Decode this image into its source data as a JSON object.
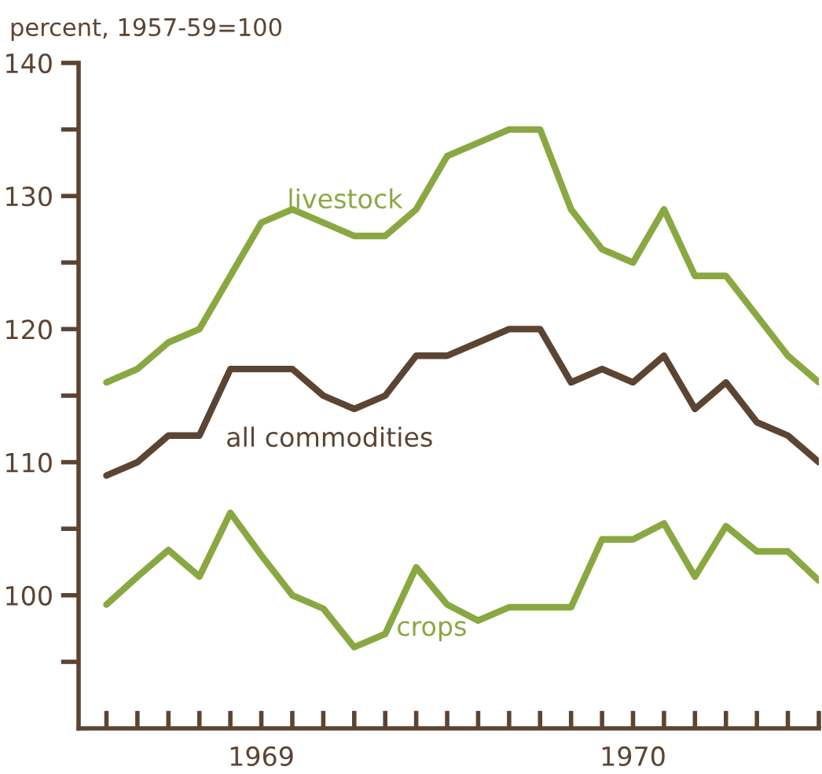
{
  "chart_data": {
    "type": "line",
    "ylabel": "percent, 1957-59=100",
    "categories": [
      null,
      null,
      null,
      null,
      null,
      "1969",
      null,
      null,
      null,
      null,
      null,
      null,
      null,
      null,
      null,
      null,
      null,
      "1970",
      null,
      null,
      null,
      null,
      null,
      null
    ],
    "series": [
      {
        "name": "livestock",
        "color": "#8aa842",
        "values": [
          116,
          117,
          119,
          120,
          124,
          128,
          129,
          128,
          127,
          127,
          129,
          133,
          134,
          135,
          135,
          129,
          126,
          125,
          129,
          124,
          124,
          121,
          118,
          116
        ]
      },
      {
        "name": "all commodities",
        "color": "#5c4433",
        "values": [
          109,
          110,
          112,
          112,
          117,
          117,
          117,
          115,
          114,
          115,
          118,
          118,
          119,
          120,
          120,
          116,
          117,
          116,
          118,
          114,
          116,
          113,
          112,
          110
        ]
      },
      {
        "name": "crops",
        "color": "#8aa842",
        "values": [
          99.3,
          101.4,
          103.4,
          101.4,
          106.2,
          103,
          100,
          99,
          96.1,
          97.1,
          102.1,
          99.3,
          98.1,
          99.1,
          99.1,
          99.1,
          104.2,
          104.2,
          105.4,
          101.4,
          105.2,
          103.3,
          103.3,
          101.1
        ]
      }
    ],
    "ylim": [
      90,
      140
    ],
    "yticks": [
      {
        "value": 95,
        "label": null
      },
      100,
      {
        "value": 105,
        "label": null
      },
      110,
      {
        "value": 115,
        "label": null
      },
      120,
      {
        "value": 125,
        "label": null
      },
      130,
      {
        "value": 135,
        "label": null
      },
      140
    ],
    "grid": false,
    "legend": false,
    "marker": "none",
    "line_style": "solid"
  }
}
